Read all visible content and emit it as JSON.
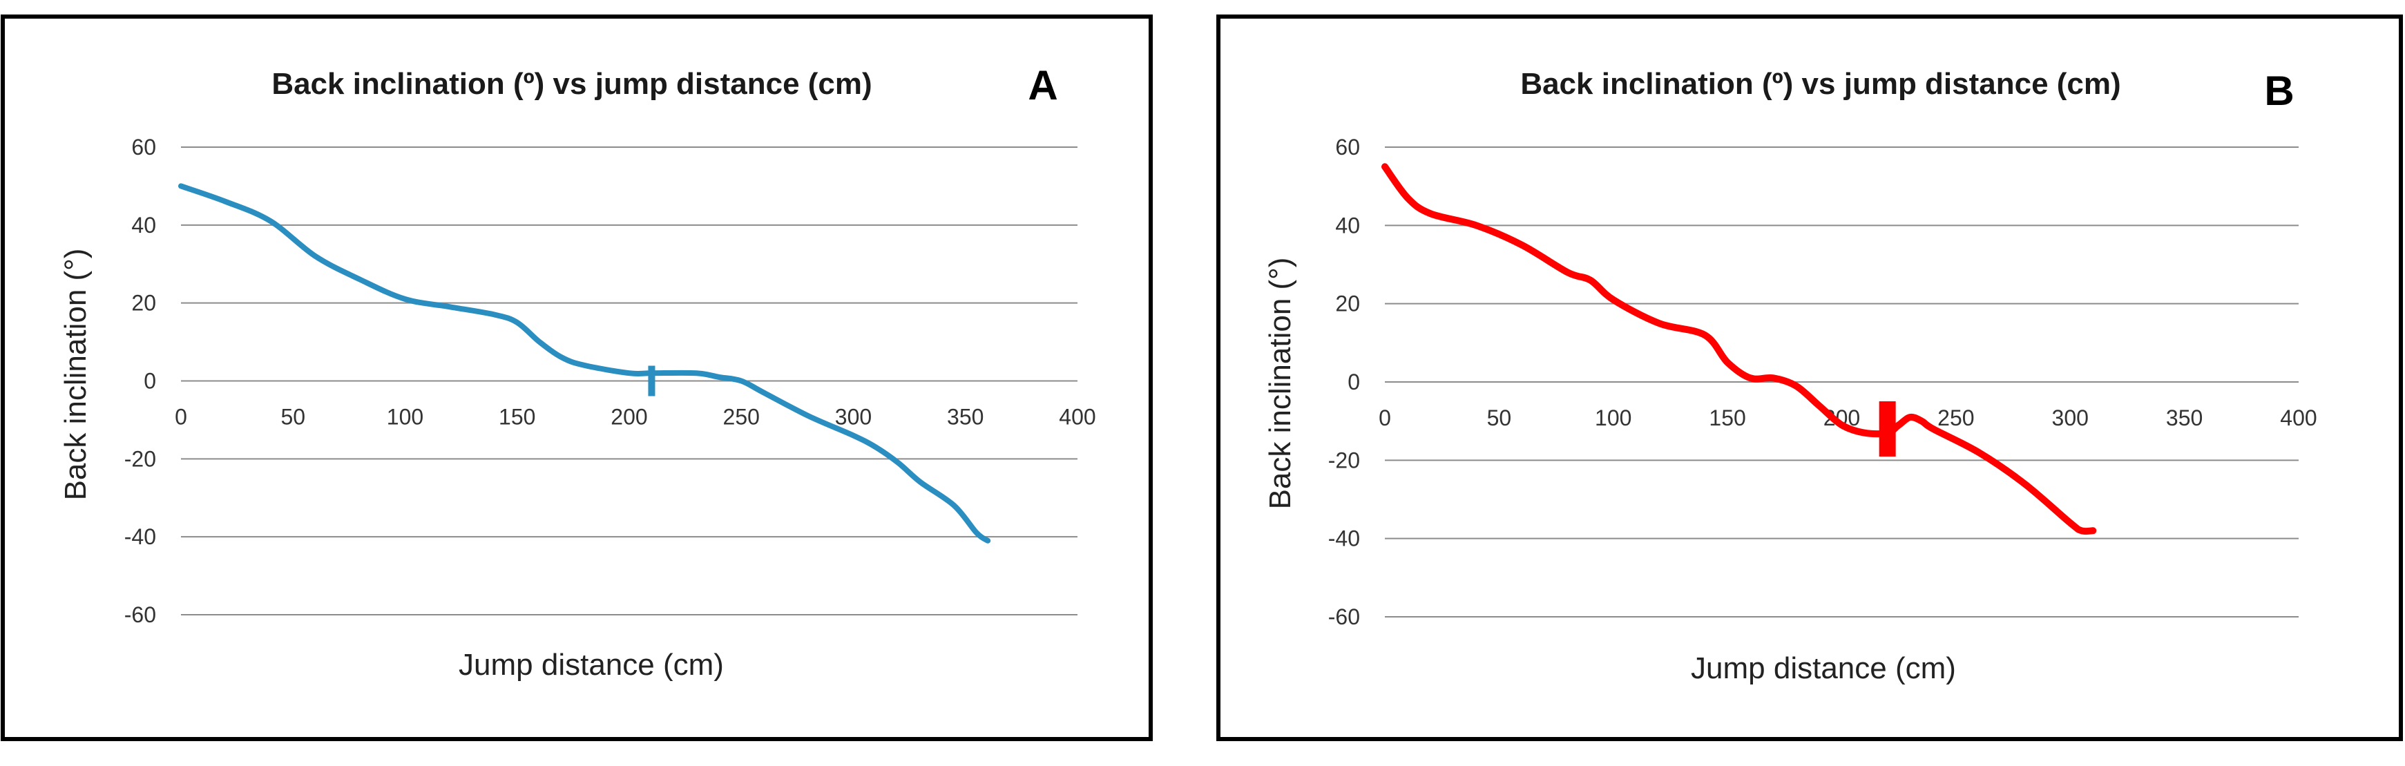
{
  "chart_data": [
    {
      "type": "line",
      "panel": "A",
      "title": "Back inclination (º) vs jump distance (cm)",
      "xlabel": "Jump distance (cm)",
      "ylabel": "Back inclination (°)",
      "xlim": [
        0,
        400
      ],
      "ylim": [
        -60,
        60
      ],
      "xticks": [
        "0",
        "50",
        "100",
        "150",
        "200",
        "250",
        "300",
        "350",
        "400"
      ],
      "yticks": [
        "60",
        "40",
        "20",
        "0",
        "-20",
        "-40",
        "-60"
      ],
      "color": "#2a8ec0",
      "marker_x": 210,
      "marker_y": 0,
      "series": [
        {
          "name": "Back inclination",
          "x": [
            0,
            20,
            40,
            60,
            80,
            100,
            120,
            140,
            150,
            160,
            170,
            180,
            200,
            210,
            230,
            240,
            250,
            260,
            280,
            300,
            310,
            320,
            330,
            345,
            355,
            360
          ],
          "y": [
            50,
            46,
            41,
            32,
            26,
            21,
            19,
            17,
            15,
            10,
            6,
            4,
            2,
            2,
            2,
            1,
            0,
            -3,
            -9,
            -14,
            -17,
            -21,
            -26,
            -32,
            -39,
            -41
          ]
        }
      ]
    },
    {
      "type": "line",
      "panel": "B",
      "title": "Back inclination (º)  vs  jump distance (cm)",
      "xlabel": "Jump distance (cm)",
      "ylabel": "Back inclination (°)",
      "xlim": [
        0,
        400
      ],
      "ylim": [
        -60,
        60
      ],
      "xticks": [
        "0",
        "50",
        "100",
        "150",
        "200",
        "250",
        "300",
        "350",
        "400"
      ],
      "yticks": [
        "60",
        "40",
        "20",
        "0",
        "-20",
        "-40",
        "-60"
      ],
      "color": "#ff0000",
      "marker_x": 220,
      "marker_y": -12,
      "series": [
        {
          "name": "Back inclination",
          "x": [
            0,
            10,
            20,
            40,
            60,
            80,
            90,
            100,
            120,
            140,
            150,
            160,
            170,
            180,
            190,
            200,
            210,
            220,
            225,
            230,
            235,
            240,
            260,
            280,
            300,
            305,
            310
          ],
          "y": [
            55,
            47,
            43,
            40,
            35,
            28,
            26,
            21,
            15,
            12,
            5,
            1,
            1,
            -1,
            -6,
            -11,
            -13,
            -13,
            -11,
            -9,
            -10,
            -12,
            -18,
            -26,
            -36,
            -38,
            -38
          ]
        }
      ]
    }
  ]
}
